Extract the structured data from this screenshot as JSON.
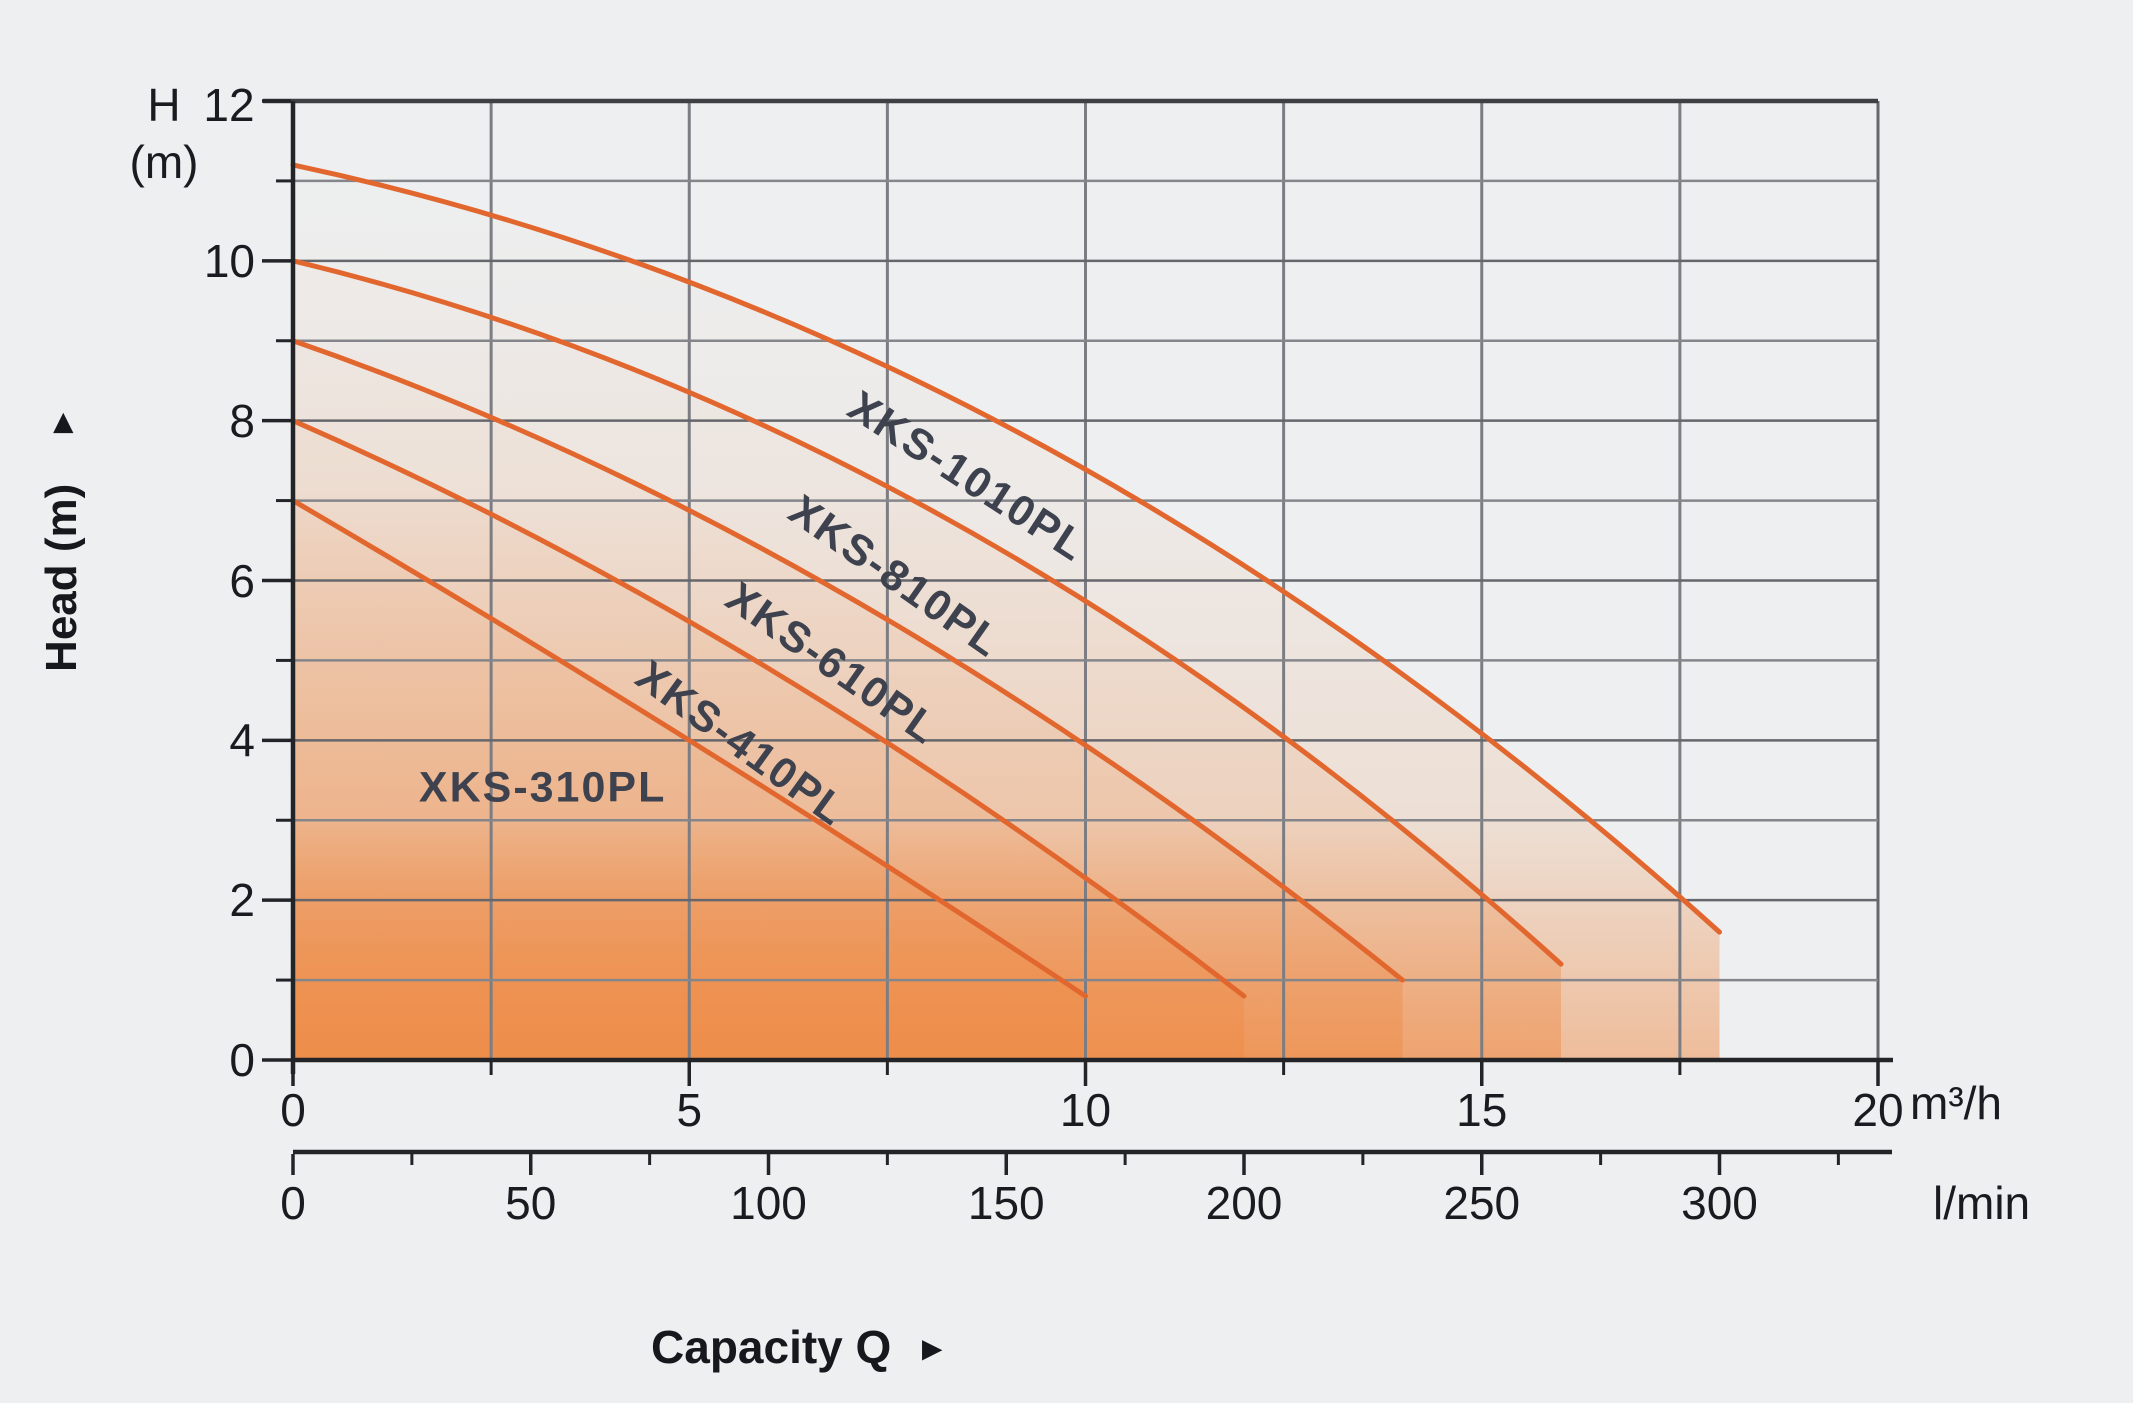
{
  "labels": {
    "h_symbol": "H",
    "h_top_value": "12",
    "h_unit": "(m)",
    "y_title": "Head (m)",
    "x_title": "Capacity Q",
    "arrow_right": "►",
    "x_unit_primary": "m³/h",
    "x_unit_secondary": "l/min"
  },
  "colors": {
    "background": "#edeff0",
    "curve": "#e2672f",
    "area_fill_rgb": "238,138,69",
    "grid_horizontal": "#66676c",
    "grid_vertical": "#7c7d82",
    "chart_border": "#3f4044",
    "axis": "#232428",
    "tick_text": "#1a1b20",
    "curve_label_text": "#3d424e"
  },
  "chart_data": {
    "type": "line",
    "title": "",
    "xlabel": "Capacity Q",
    "ylabel": "Head (m)",
    "grid": true,
    "legend_position": "on-curve",
    "x_axis": {
      "unit": "m³/h",
      "min": 0,
      "max": 20,
      "major_ticks": [
        0,
        5,
        10,
        15,
        20
      ],
      "minor_ticks": [
        2.5,
        7.5,
        12.5,
        17.5
      ],
      "grid_step": 2.5
    },
    "x_axis_secondary": {
      "unit": "l/min",
      "major_ticks": [
        0,
        50,
        100,
        150,
        200,
        250,
        300
      ],
      "minor_ticks": [
        25,
        75,
        125,
        175,
        225,
        275,
        325
      ],
      "lmin_per_m3h": 16.6667
    },
    "y_axis": {
      "symbol": "H",
      "unit": "(m)",
      "min": 0,
      "max": 12,
      "major_ticks": [
        0,
        2,
        4,
        6,
        8,
        10,
        12
      ],
      "minor_step": 1,
      "grid_step": 1
    },
    "series": [
      {
        "name": "XKS-1010PL",
        "shutoff_head_m": 11.2,
        "max_flow_m3h": 18,
        "end_head_m": 1.6,
        "bezier_ctrl": [
          9.5,
          9.2
        ],
        "points_m3h_head": [
          [
            0,
            11.2
          ],
          [
            2,
            10.7
          ],
          [
            4,
            10.1
          ],
          [
            6,
            9.3
          ],
          [
            8,
            8.4
          ],
          [
            10,
            7.4
          ],
          [
            12,
            6.2
          ],
          [
            14,
            4.8
          ],
          [
            16,
            3.3
          ],
          [
            18,
            1.6
          ]
        ],
        "label": {
          "q": 8.5,
          "h": 7.3,
          "angle_deg": 33
        }
      },
      {
        "name": "XKS-810PL",
        "shutoff_head_m": 10.0,
        "max_flow_m3h": 16,
        "end_head_m": 1.2,
        "bezier_ctrl": [
          8.4,
          8.0
        ],
        "points_m3h_head": [
          [
            0,
            10.0
          ],
          [
            2,
            9.5
          ],
          [
            4,
            8.8
          ],
          [
            6,
            7.9
          ],
          [
            8,
            6.9
          ],
          [
            10,
            5.7
          ],
          [
            12,
            4.4
          ],
          [
            14,
            2.9
          ],
          [
            16,
            1.2
          ]
        ],
        "label": {
          "q": 7.6,
          "h": 6.05,
          "angle_deg": 35
        }
      },
      {
        "name": "XKS-610PL",
        "shutoff_head_m": 9.0,
        "max_flow_m3h": 14,
        "end_head_m": 1.0,
        "bezier_ctrl": [
          7.0,
          6.6
        ],
        "points_m3h_head": [
          [
            0,
            9.0
          ],
          [
            2,
            8.2
          ],
          [
            4,
            7.4
          ],
          [
            6,
            6.4
          ],
          [
            8,
            5.2
          ],
          [
            10,
            3.9
          ],
          [
            12,
            2.5
          ],
          [
            14,
            1.0
          ]
        ],
        "label": {
          "q": 6.8,
          "h": 4.95,
          "angle_deg": 35
        }
      },
      {
        "name": "XKS-410PL",
        "shutoff_head_m": 8.0,
        "max_flow_m3h": 12,
        "end_head_m": 0.8,
        "bezier_ctrl": [
          6.0,
          5.4
        ],
        "points_m3h_head": [
          [
            0,
            8.0
          ],
          [
            2,
            7.1
          ],
          [
            4,
            6.0
          ],
          [
            6,
            4.9
          ],
          [
            8,
            3.6
          ],
          [
            10,
            2.3
          ],
          [
            12,
            0.8
          ]
        ],
        "label": {
          "q": 5.65,
          "h": 3.95,
          "angle_deg": 36
        }
      },
      {
        "name": "XKS-310PL",
        "shutoff_head_m": 7.0,
        "max_flow_m3h": 10,
        "end_head_m": 0.8,
        "bezier_ctrl": [
          5.0,
          4.1
        ],
        "points_m3h_head": [
          [
            0,
            7.0
          ],
          [
            2,
            5.8
          ],
          [
            4,
            4.6
          ],
          [
            6,
            3.4
          ],
          [
            8,
            2.1
          ],
          [
            10,
            0.8
          ]
        ],
        "label": {
          "q": 3.15,
          "h": 3.4,
          "angle_deg": 0
        }
      }
    ]
  }
}
